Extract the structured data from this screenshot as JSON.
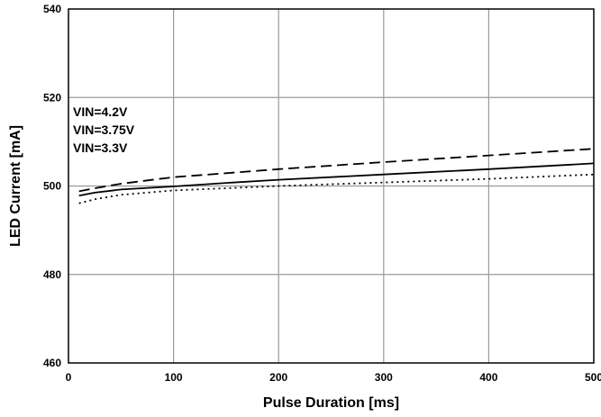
{
  "chart_data": {
    "type": "line",
    "title": "",
    "xlabel": "Pulse Duration [ms]",
    "ylabel": "LED Current [mA]",
    "xlim": [
      0,
      500
    ],
    "ylim": [
      460,
      540
    ],
    "xticks": [
      0,
      100,
      200,
      300,
      400,
      500
    ],
    "yticks": [
      460,
      480,
      500,
      520,
      540
    ],
    "grid": true,
    "legend_position": "top-left",
    "series": [
      {
        "name": "VIN=4.2V",
        "line_style": "dashed",
        "color": "#000000",
        "x": [
          10,
          25,
          50,
          100,
          150,
          200,
          300,
          400,
          500
        ],
        "y": [
          498.8,
          499.5,
          500.5,
          502.0,
          502.9,
          503.8,
          505.4,
          506.9,
          508.4
        ]
      },
      {
        "name": "VIN=3.75V",
        "line_style": "solid",
        "color": "#000000",
        "x": [
          10,
          25,
          50,
          100,
          150,
          200,
          300,
          400,
          500
        ],
        "y": [
          497.8,
          498.5,
          499.2,
          499.9,
          500.7,
          501.4,
          502.6,
          503.8,
          505.1
        ]
      },
      {
        "name": "VIN=3.3V",
        "line_style": "dotted",
        "color": "#000000",
        "x": [
          10,
          25,
          50,
          100,
          150,
          200,
          300,
          400,
          500
        ],
        "y": [
          496.1,
          497.0,
          498.0,
          499.0,
          499.5,
          500.0,
          500.8,
          501.6,
          502.6
        ]
      }
    ]
  }
}
